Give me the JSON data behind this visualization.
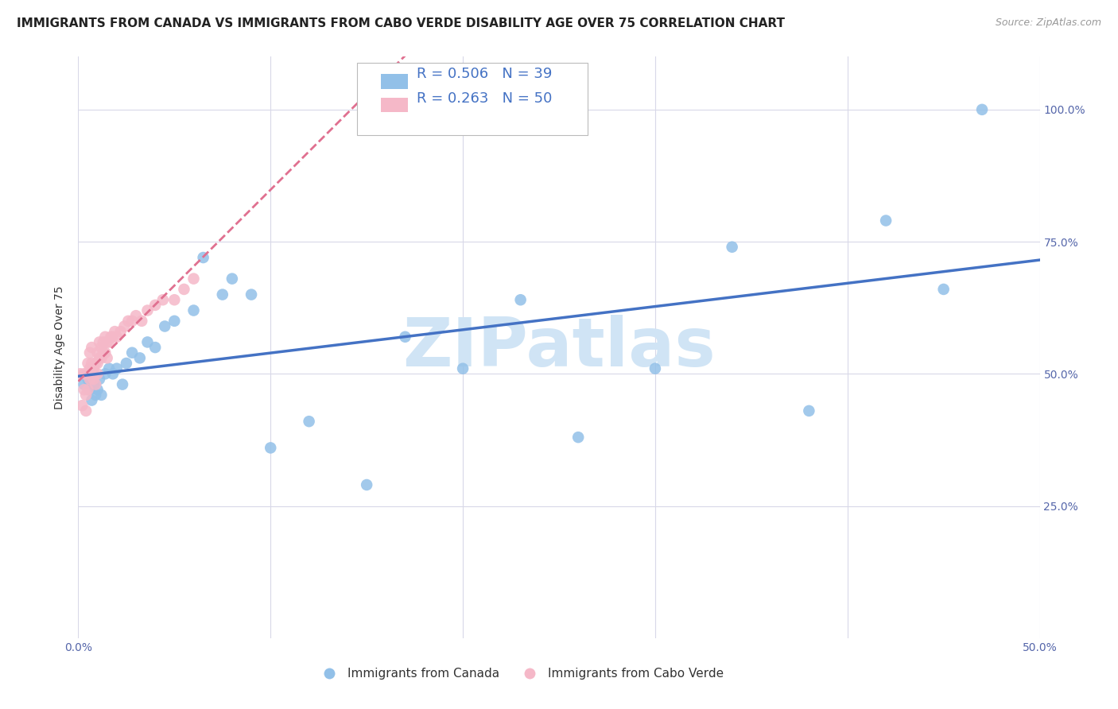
{
  "title": "IMMIGRANTS FROM CANADA VS IMMIGRANTS FROM CABO VERDE DISABILITY AGE OVER 75 CORRELATION CHART",
  "source": "Source: ZipAtlas.com",
  "ylabel": "Disability Age Over 75",
  "legend_canada_label": "R = 0.506   N = 39",
  "legend_caboverde_label": "R = 0.263   N = 50",
  "legend_bottom_canada": "Immigrants from Canada",
  "legend_bottom_caboverde": "Immigrants from Cabo Verde",
  "canada_color": "#92c0e8",
  "caboverde_color": "#f5b8c8",
  "canada_line_color": "#4472c4",
  "caboverde_line_color": "#e07090",
  "watermark_color": "#d0e4f5",
  "xlim": [
    0.0,
    0.5
  ],
  "ylim": [
    0.0,
    1.1
  ],
  "canada_x": [
    0.003,
    0.005,
    0.006,
    0.007,
    0.008,
    0.009,
    0.01,
    0.011,
    0.012,
    0.014,
    0.016,
    0.018,
    0.02,
    0.023,
    0.025,
    0.028,
    0.032,
    0.036,
    0.04,
    0.045,
    0.05,
    0.06,
    0.065,
    0.075,
    0.08,
    0.09,
    0.1,
    0.12,
    0.15,
    0.17,
    0.2,
    0.23,
    0.26,
    0.3,
    0.34,
    0.38,
    0.42,
    0.45,
    0.47
  ],
  "canada_y": [
    0.48,
    0.49,
    0.47,
    0.45,
    0.48,
    0.46,
    0.47,
    0.49,
    0.46,
    0.5,
    0.51,
    0.5,
    0.51,
    0.48,
    0.52,
    0.54,
    0.53,
    0.56,
    0.55,
    0.59,
    0.6,
    0.62,
    0.72,
    0.65,
    0.68,
    0.65,
    0.36,
    0.41,
    0.29,
    0.57,
    0.51,
    0.64,
    0.38,
    0.51,
    0.74,
    0.43,
    0.79,
    0.66,
    1.0
  ],
  "caboverde_x": [
    0.001,
    0.002,
    0.003,
    0.003,
    0.004,
    0.004,
    0.005,
    0.005,
    0.005,
    0.006,
    0.006,
    0.006,
    0.007,
    0.007,
    0.007,
    0.008,
    0.008,
    0.008,
    0.009,
    0.009,
    0.01,
    0.01,
    0.01,
    0.011,
    0.011,
    0.012,
    0.012,
    0.013,
    0.013,
    0.014,
    0.014,
    0.015,
    0.015,
    0.016,
    0.017,
    0.018,
    0.019,
    0.02,
    0.022,
    0.024,
    0.026,
    0.028,
    0.03,
    0.033,
    0.036,
    0.04,
    0.044,
    0.05,
    0.055,
    0.06
  ],
  "caboverde_y": [
    0.5,
    0.44,
    0.47,
    0.5,
    0.43,
    0.46,
    0.5,
    0.47,
    0.52,
    0.49,
    0.51,
    0.54,
    0.52,
    0.5,
    0.55,
    0.5,
    0.51,
    0.49,
    0.52,
    0.48,
    0.54,
    0.52,
    0.5,
    0.53,
    0.56,
    0.53,
    0.55,
    0.54,
    0.56,
    0.54,
    0.57,
    0.56,
    0.53,
    0.56,
    0.57,
    0.57,
    0.58,
    0.57,
    0.58,
    0.59,
    0.6,
    0.6,
    0.61,
    0.6,
    0.62,
    0.63,
    0.64,
    0.64,
    0.66,
    0.68
  ],
  "background_color": "#ffffff",
  "grid_color": "#d8d8e8",
  "title_fontsize": 11,
  "axis_fontsize": 10,
  "tick_fontsize": 10
}
